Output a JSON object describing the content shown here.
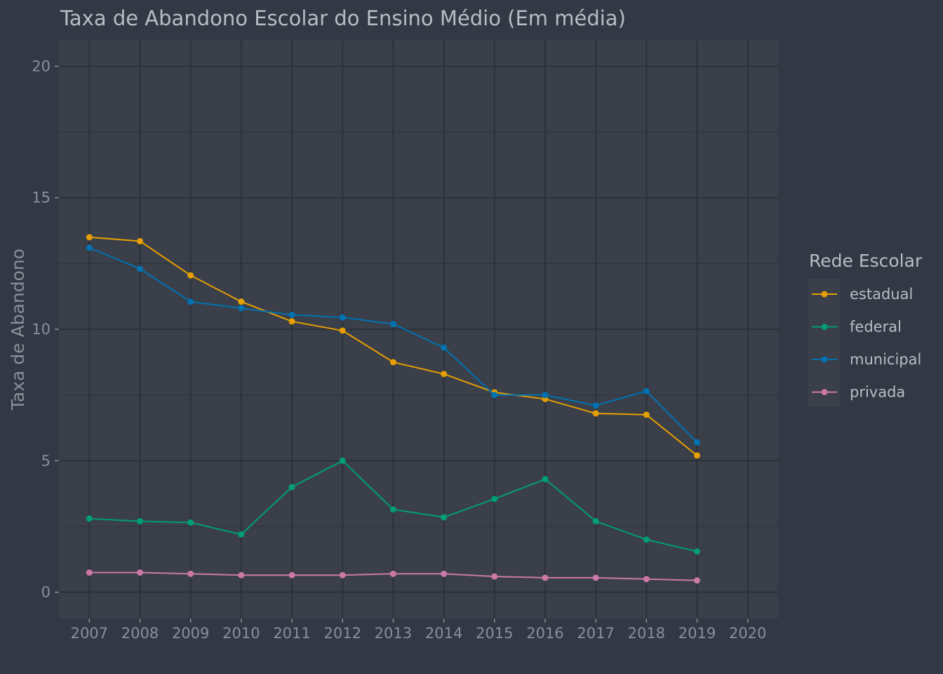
{
  "chart_data": {
    "type": "line",
    "title": "Taxa de Abandono Escolar do Ensino Médio (Em média)",
    "xlabel": "",
    "ylabel": "Taxa de Abandono",
    "x": [
      2007,
      2008,
      2009,
      2010,
      2011,
      2012,
      2013,
      2014,
      2015,
      2016,
      2017,
      2018,
      2019
    ],
    "x_ticks": [
      "2007",
      "2008",
      "2009",
      "2010",
      "2011",
      "2012",
      "2013",
      "2014",
      "2015",
      "2016",
      "2017",
      "2018",
      "2019",
      "2020"
    ],
    "y_ticks": [
      "0",
      "5",
      "10",
      "15",
      "20"
    ],
    "xlim": [
      2006.4,
      2020.6
    ],
    "ylim": [
      -1,
      21
    ],
    "grid": true,
    "legend_position": "right",
    "legend_title": "Rede Escolar",
    "series": [
      {
        "name": "estadual",
        "color": "#e69f00",
        "values": [
          13.5,
          13.35,
          12.05,
          11.05,
          10.3,
          9.95,
          8.75,
          8.3,
          7.6,
          7.35,
          6.8,
          6.75,
          5.2
        ]
      },
      {
        "name": "federal",
        "color": "#009e73",
        "values": [
          2.8,
          2.7,
          2.65,
          2.2,
          4.0,
          5.0,
          3.15,
          2.85,
          3.55,
          4.3,
          2.7,
          2.0,
          1.55
        ]
      },
      {
        "name": "municipal",
        "color": "#0072b2",
        "values": [
          13.1,
          12.3,
          11.05,
          10.8,
          10.55,
          10.45,
          10.2,
          9.3,
          7.5,
          7.5,
          7.1,
          7.65,
          5.7
        ]
      },
      {
        "name": "privada",
        "color": "#cc79a7",
        "values": [
          0.75,
          0.75,
          0.7,
          0.65,
          0.65,
          0.65,
          0.7,
          0.7,
          0.6,
          0.55,
          0.55,
          0.5,
          0.45
        ]
      }
    ]
  }
}
